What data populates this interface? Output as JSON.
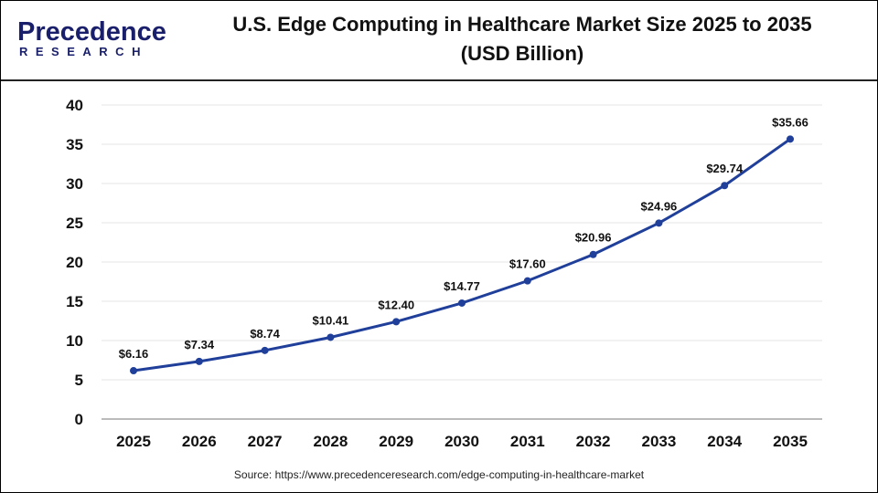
{
  "logo": {
    "line1": "Precedence",
    "line2": "RESEARCH"
  },
  "title_line1": "U.S. Edge Computing in Healthcare Market Size 2025 to 2035",
  "title_line2": "(USD Billion)",
  "source": "Source: https://www.precedenceresearch.com/edge-computing-in-healthcare-market",
  "chart_data": {
    "type": "line",
    "title": "U.S. Edge Computing in Healthcare Market Size 2025 to 2035 (USD Billion)",
    "categories": [
      "2025",
      "2026",
      "2027",
      "2028",
      "2029",
      "2030",
      "2031",
      "2032",
      "2033",
      "2034",
      "2035"
    ],
    "values": [
      6.16,
      7.34,
      8.74,
      10.41,
      12.4,
      14.77,
      17.6,
      20.96,
      24.96,
      29.74,
      35.66
    ],
    "data_labels": [
      "$6.16",
      "$7.34",
      "$8.74",
      "$10.41",
      "$12.40",
      "$14.77",
      "$17.60",
      "$20.96",
      "$24.96",
      "$29.74",
      "$35.66"
    ],
    "ylim": [
      0,
      40
    ],
    "yticks": [
      0,
      5,
      10,
      15,
      20,
      25,
      30,
      35,
      40
    ],
    "grid": true,
    "line_color": "#1f3f9a"
  }
}
